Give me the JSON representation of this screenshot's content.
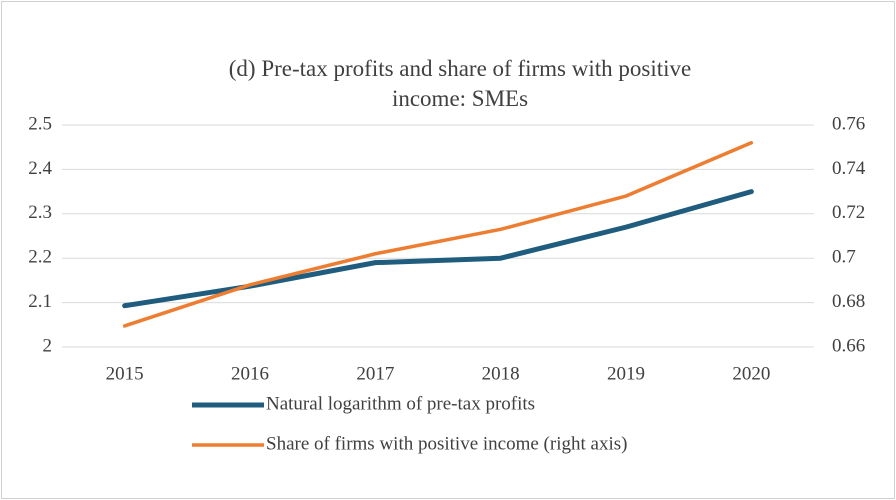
{
  "chart_data": {
    "type": "line",
    "title": "(d) Pre-tax profits and share of firms with positive income: SMEs",
    "categories": [
      "2015",
      "2016",
      "2017",
      "2018",
      "2019",
      "2020"
    ],
    "series": [
      {
        "name": "Natural logarithm of pre-tax profits",
        "color": "#1f5c7e",
        "values": [
          2.093,
          2.137,
          2.19,
          2.2,
          2.27,
          2.35
        ]
      },
      {
        "name": "Share of firms with positive income (right axis)",
        "color": "#ed7d31",
        "axis": "y2",
        "values": [
          0.6695,
          0.688,
          0.702,
          0.713,
          0.728,
          0.752
        ]
      }
    ],
    "ylim": [
      2,
      2.5
    ],
    "yticks": [
      2,
      2.1,
      2.2,
      2.3,
      2.4,
      2.5
    ],
    "y2lim": [
      0.66,
      0.76
    ],
    "y2ticks": [
      0.66,
      0.68,
      0.7,
      0.72,
      0.74,
      0.76
    ],
    "grid": true,
    "legend": "bottom"
  }
}
